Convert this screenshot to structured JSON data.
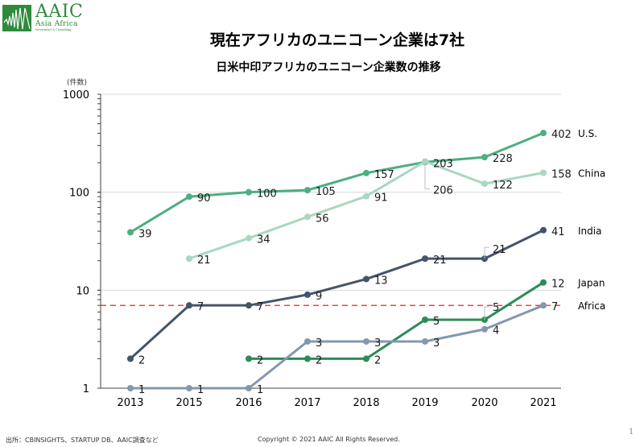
{
  "logo": {
    "main": "AAIC",
    "sub": "Asia Africa",
    "tiny": "Investment & Consulting",
    "brand_color": "#2f8a3c"
  },
  "header": {
    "title": "現在アフリカのユニコーン企業は7社",
    "subtitle": "日米中印アフリカのユニコーン企業数の推移"
  },
  "chart_data": {
    "type": "line",
    "title": "日米中印アフリカのユニコーン企業数の推移",
    "ylabel": "(件数)",
    "xlabel": "",
    "yscale": "log",
    "ylim": [
      1,
      1000
    ],
    "yticks": [
      "1",
      "10",
      "100",
      "1000"
    ],
    "categories": [
      "2013",
      "2015",
      "2016",
      "2017",
      "2018",
      "2019",
      "2020",
      "2021"
    ],
    "grid": "horizontal",
    "series": [
      {
        "name": "U.S.",
        "color": "#4caf80",
        "values": [
          39,
          90,
          100,
          105,
          157,
          203,
          228,
          402
        ],
        "labels": [
          "39",
          "90",
          "100",
          "105",
          "157",
          "203",
          "228",
          "402"
        ]
      },
      {
        "name": "China",
        "color": "#a8d8c0",
        "values": [
          null,
          21,
          34,
          56,
          91,
          206,
          122,
          158
        ],
        "labels": [
          null,
          "21",
          "34",
          "56",
          "91",
          "206",
          "122",
          "158"
        ]
      },
      {
        "name": "India",
        "color": "#44546a",
        "values": [
          2,
          7,
          7,
          9,
          13,
          21,
          21,
          41
        ],
        "labels": [
          "2",
          "7",
          "7",
          "9",
          "13",
          "21",
          "21",
          "41"
        ]
      },
      {
        "name": "Japan",
        "color": "#2e8b57",
        "values": [
          null,
          null,
          2,
          2,
          2,
          5,
          5,
          12
        ],
        "labels": [
          null,
          null,
          "2",
          "2",
          "2",
          "5",
          "5",
          "12"
        ]
      },
      {
        "name": "Africa",
        "color": "#8497b0",
        "values": [
          1,
          1,
          1,
          3,
          3,
          3,
          4,
          7
        ],
        "labels": [
          "1",
          "1",
          "1",
          "3",
          "3",
          "3",
          "4",
          "7"
        ]
      }
    ],
    "reference_line": {
      "name": "Africa",
      "value": 7,
      "color": "#ff0000",
      "style": "dashed"
    },
    "legend": "right-end labels"
  },
  "footer": {
    "source": "出所：CBINSIGHTS、STARTUP DB、AAIC調査など",
    "copyright": "Copyright © 2021 AAIC All Rights Reserved.",
    "page_number": "1"
  }
}
